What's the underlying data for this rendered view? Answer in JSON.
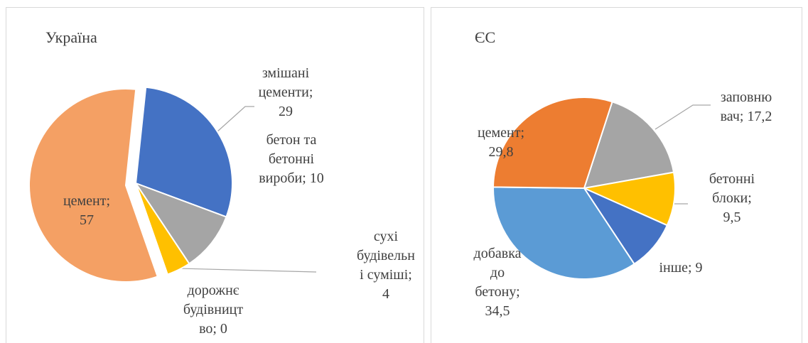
{
  "chart_data": [
    {
      "type": "pie",
      "title": "Україна",
      "values": [
        29,
        10,
        4,
        0,
        57
      ],
      "value_labels": [
        "змішані цементи; 29",
        "бетон та бетонні вироби; 10",
        "сухі будівельні суміші; 4",
        "дорожнє будівництво; 0",
        "цемент; 57"
      ],
      "colors": [
        "#4472c4",
        "#a5a5a5",
        "#ffc000",
        "#5b9bd5",
        "#f4a064"
      ]
    },
    {
      "type": "pie",
      "title": "ЄС",
      "values": [
        17.2,
        9.5,
        9,
        34.5,
        29.8
      ],
      "value_labels": [
        "заповнювач; 17,2",
        "бетонні блоки; 9,5",
        "інше; 9",
        "добавка до бетону; 34,5",
        "цемент; 29,8"
      ],
      "colors": [
        "#a5a5a5",
        "#ffc000",
        "#4472c4",
        "#5b9bd5",
        "#ed7d31"
      ]
    }
  ]
}
